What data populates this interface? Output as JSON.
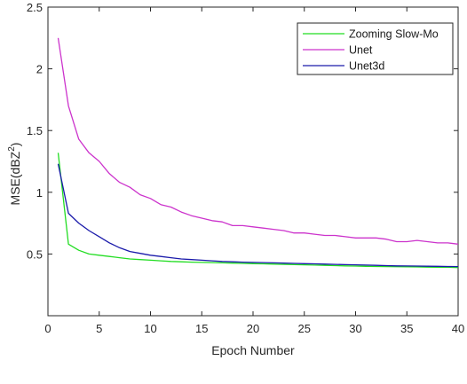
{
  "chart_data": {
    "type": "line",
    "title": "",
    "xlabel": "Epoch Number",
    "ylabel_main": "MSE(dBZ",
    "ylabel_sup": "2",
    "ylabel_close": ")",
    "xlim": [
      0,
      40
    ],
    "ylim": [
      0,
      2.5
    ],
    "xticks": [
      0,
      5,
      10,
      15,
      20,
      25,
      30,
      35,
      40
    ],
    "yticks": [
      0.5,
      1,
      1.5,
      2,
      2.5
    ],
    "grid": false,
    "legend_placement": "top-right",
    "series": [
      {
        "name": "Zooming Slow-Mo",
        "color": "#22dd22",
        "x": [
          1,
          2,
          3,
          4,
          5,
          6,
          7,
          8,
          9,
          10,
          11,
          12,
          13,
          14,
          15,
          16,
          17,
          18,
          19,
          20,
          21,
          22,
          23,
          24,
          25,
          26,
          27,
          28,
          29,
          30,
          31,
          32,
          33,
          34,
          35,
          36,
          37,
          38,
          39,
          40
        ],
        "values": [
          1.32,
          0.58,
          0.53,
          0.5,
          0.49,
          0.48,
          0.47,
          0.46,
          0.455,
          0.45,
          0.445,
          0.44,
          0.437,
          0.434,
          0.432,
          0.43,
          0.428,
          0.426,
          0.424,
          0.422,
          0.42,
          0.418,
          0.416,
          0.414,
          0.412,
          0.41,
          0.408,
          0.406,
          0.404,
          0.402,
          0.4,
          0.399,
          0.398,
          0.397,
          0.396,
          0.395,
          0.394,
          0.393,
          0.392,
          0.39
        ]
      },
      {
        "name": "Unet",
        "color": "#cc33cc",
        "x": [
          1,
          2,
          3,
          4,
          5,
          6,
          7,
          8,
          9,
          10,
          11,
          12,
          13,
          14,
          15,
          16,
          17,
          18,
          19,
          20,
          21,
          22,
          23,
          24,
          25,
          26,
          27,
          28,
          29,
          30,
          31,
          32,
          33,
          34,
          35,
          36,
          37,
          38,
          39,
          40
        ],
        "values": [
          2.25,
          1.7,
          1.43,
          1.32,
          1.25,
          1.15,
          1.08,
          1.04,
          0.98,
          0.95,
          0.9,
          0.88,
          0.84,
          0.81,
          0.79,
          0.77,
          0.76,
          0.73,
          0.73,
          0.72,
          0.71,
          0.7,
          0.69,
          0.67,
          0.67,
          0.66,
          0.65,
          0.65,
          0.64,
          0.63,
          0.63,
          0.63,
          0.62,
          0.6,
          0.6,
          0.61,
          0.6,
          0.59,
          0.59,
          0.58
        ]
      },
      {
        "name": "Unet3d",
        "color": "#1a1aaa",
        "x": [
          1,
          2,
          3,
          4,
          5,
          6,
          7,
          8,
          9,
          10,
          11,
          12,
          13,
          14,
          15,
          16,
          17,
          18,
          19,
          20,
          21,
          22,
          23,
          24,
          25,
          26,
          27,
          28,
          29,
          30,
          31,
          32,
          33,
          34,
          35,
          36,
          37,
          38,
          39,
          40
        ],
        "values": [
          1.23,
          0.83,
          0.75,
          0.69,
          0.64,
          0.59,
          0.55,
          0.52,
          0.505,
          0.49,
          0.48,
          0.47,
          0.46,
          0.455,
          0.45,
          0.445,
          0.44,
          0.437,
          0.434,
          0.432,
          0.43,
          0.428,
          0.426,
          0.424,
          0.422,
          0.42,
          0.418,
          0.416,
          0.414,
          0.412,
          0.41,
          0.408,
          0.406,
          0.404,
          0.403,
          0.402,
          0.401,
          0.4,
          0.399,
          0.398
        ]
      }
    ]
  }
}
